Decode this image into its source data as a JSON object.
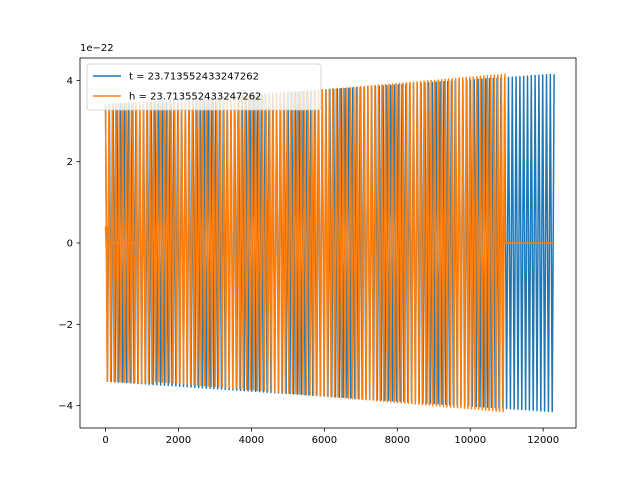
{
  "chart_data": {
    "type": "line",
    "title": "",
    "xlabel": "",
    "ylabel": "",
    "xlim": [
      -700,
      12900
    ],
    "ylim": [
      -4.55,
      4.55
    ],
    "y_scale_label": "1e−22",
    "xticks": [
      0,
      2000,
      4000,
      6000,
      8000,
      10000,
      12000
    ],
    "xtick_labels": [
      "0",
      "2000",
      "4000",
      "6000",
      "8000",
      "10000",
      "12000"
    ],
    "yticks": [
      -4,
      -2,
      0,
      2,
      4
    ],
    "ytick_labels": [
      "−4",
      "−2",
      "0",
      "2",
      "4"
    ],
    "grid": false,
    "legend_position": "top-left",
    "series": [
      {
        "name": "t = 23.713552433247262",
        "color": "#1f77b4",
        "segments": [
          {
            "x_start": 0,
            "x_end": 12300,
            "amp_start": 3.4,
            "amp_end": 4.15,
            "cycles": 118
          }
        ]
      },
      {
        "name": "h = 23.713552433247262",
        "color": "#ff7f0e",
        "segments": [
          {
            "x_start": 0,
            "x_end": 60,
            "amp_start": 0.4,
            "amp_end": 0.4,
            "cycles": 0.5
          },
          {
            "x_start": 60,
            "x_end": 1320,
            "amp_start": 0,
            "amp_end": 0,
            "cycles": 0
          },
          {
            "x_start": 1320,
            "x_end": 10950,
            "amp_start": 3.4,
            "amp_end": 4.15,
            "cycles": 100
          },
          {
            "x_start": 10950,
            "x_end": 12300,
            "amp_start": 0,
            "amp_end": 0,
            "cycles": 0
          }
        ],
        "overlay_segment": {
          "x_start": 0,
          "x_end": 1320,
          "amp_start": 3.4,
          "amp_end": 3.45,
          "cycles": 14
        }
      }
    ]
  }
}
